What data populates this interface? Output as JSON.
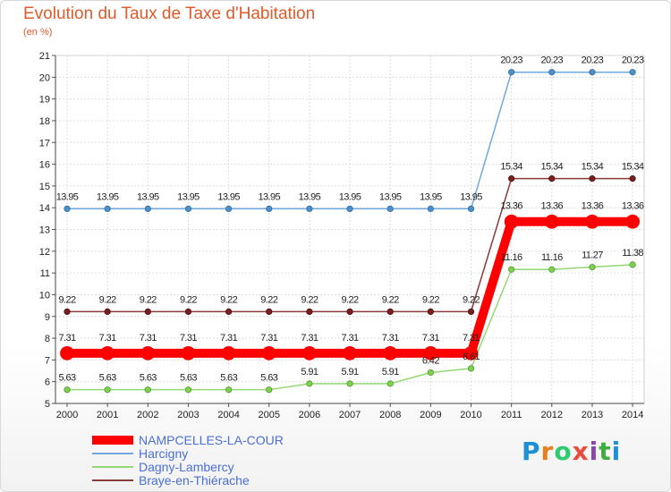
{
  "chart_data": {
    "type": "line",
    "title": "Evolution du Taux de Taxe d'Habitation",
    "subtitle": "(en %)",
    "x": [
      "2000",
      "2001",
      "2002",
      "2003",
      "2004",
      "2005",
      "2006",
      "2007",
      "2008",
      "2009",
      "2010",
      "2011",
      "2012",
      "2013",
      "2014"
    ],
    "ylim": [
      5,
      21
    ],
    "yticks": [
      "5",
      "6",
      "7",
      "8",
      "9",
      "10",
      "11",
      "12",
      "13",
      "14",
      "15",
      "16",
      "17",
      "18",
      "19",
      "20",
      "21"
    ],
    "grid": true,
    "legend_position": "bottom-left",
    "series": [
      {
        "name": "NAMPCELLES-LA-COUR",
        "color": "#ff0000",
        "values": [
          7.31,
          7.31,
          7.31,
          7.31,
          7.31,
          7.31,
          7.31,
          7.31,
          7.31,
          7.31,
          7.31,
          13.36,
          13.36,
          13.36,
          13.36
        ],
        "labels": [
          "7.31",
          "7.31",
          "7.31",
          "7.31",
          "7.31",
          "7.31",
          "7.31",
          "7.31",
          "7.31",
          "7.31",
          "7.31",
          "13.36",
          "13.36",
          "13.36",
          "13.36"
        ]
      },
      {
        "name": "Harcigny",
        "color": "#6fa8dc",
        "values": [
          13.95,
          13.95,
          13.95,
          13.95,
          13.95,
          13.95,
          13.95,
          13.95,
          13.95,
          13.95,
          13.95,
          20.23,
          20.23,
          20.23,
          20.23
        ],
        "labels": [
          "13.95",
          "13.95",
          "13.95",
          "13.95",
          "13.95",
          "13.95",
          "13.95",
          "13.95",
          "13.95",
          "13.95",
          "13.95",
          "20.23",
          "20.23",
          "20.23",
          "20.23"
        ]
      },
      {
        "name": "Dagny-Lambercy",
        "color": "#93d873",
        "values": [
          5.63,
          5.63,
          5.63,
          5.63,
          5.63,
          5.63,
          5.91,
          5.91,
          5.91,
          6.42,
          6.61,
          11.16,
          11.16,
          11.27,
          11.38
        ],
        "labels": [
          "5.63",
          "5.63",
          "5.63",
          "5.63",
          "5.63",
          "5.63",
          "5.91",
          "5.91",
          "5.91",
          "6.42",
          "6.61",
          "11.16",
          "11.16",
          "11.27",
          "11.38"
        ]
      },
      {
        "name": "Braye-en-Thiérache",
        "color": "#8a3b3b",
        "values": [
          9.22,
          9.22,
          9.22,
          9.22,
          9.22,
          9.22,
          9.22,
          9.22,
          9.22,
          9.22,
          9.22,
          15.34,
          15.34,
          15.34,
          15.34
        ],
        "labels": [
          "9.22",
          "9.22",
          "9.22",
          "9.22",
          "9.22",
          "9.22",
          "9.22",
          "9.22",
          "9.22",
          "9.22",
          "9.22",
          "15.34",
          "15.34",
          "15.34",
          "15.34"
        ]
      }
    ]
  },
  "logo": {
    "letters": [
      "P",
      "r",
      "o",
      "x",
      "i",
      "t",
      "i"
    ],
    "colors": [
      "#1e90d6",
      "#e67e22",
      "#2ecc71",
      "#e74c3c",
      "#8e44ad",
      "#3fae3f",
      "#1e90d6"
    ]
  }
}
